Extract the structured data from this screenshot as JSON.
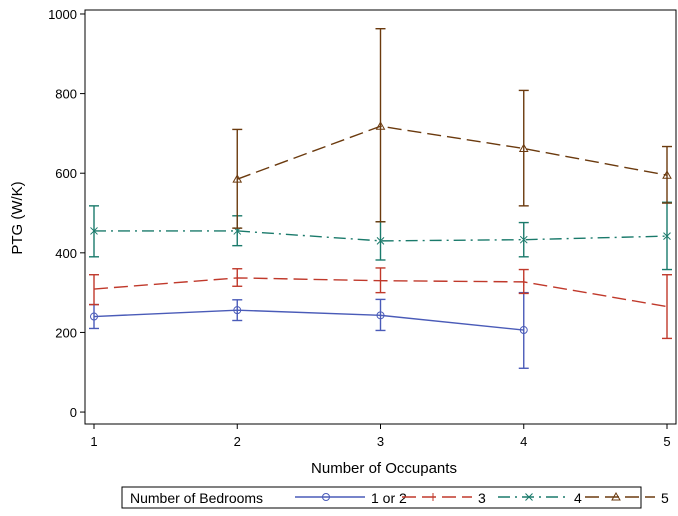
{
  "chart_data": {
    "type": "line",
    "xlabel": "Number of Occupants",
    "ylabel": "PTG (W/K)",
    "x_ticks": [
      "1",
      "2",
      "3",
      "4",
      "5"
    ],
    "y_ticks": [
      "0",
      "200",
      "400",
      "600",
      "800",
      "1000"
    ],
    "xlim": [
      1,
      5
    ],
    "ylim": [
      -30,
      1010
    ],
    "grid": false,
    "legend": {
      "title": "Number of Bedrooms",
      "placement": "bottom"
    },
    "series": [
      {
        "name": "1 or 2",
        "color": "#4a5bb8",
        "dash": "solid",
        "marker": "circle",
        "x": [
          1,
          2,
          3,
          4
        ],
        "y": [
          240,
          256,
          243,
          206
        ],
        "err_low": [
          210,
          230,
          205,
          110
        ],
        "err_high": [
          270,
          282,
          283,
          300
        ]
      },
      {
        "name": "3",
        "color": "#c0392b",
        "dash": "long-dash",
        "marker": "vertical-bar",
        "x": [
          1,
          2,
          3,
          4,
          5
        ],
        "y": [
          309,
          337,
          330,
          327,
          265
        ],
        "err_low": [
          270,
          316,
          300,
          298,
          185
        ],
        "err_high": [
          345,
          360,
          362,
          358,
          345
        ]
      },
      {
        "name": "4",
        "color": "#1a7a6b",
        "dash": "dash-dot",
        "marker": "x",
        "x": [
          1,
          2,
          3,
          4,
          5
        ],
        "y": [
          455,
          455,
          430,
          433,
          442
        ],
        "err_low": [
          390,
          418,
          382,
          390,
          358
        ],
        "err_high": [
          518,
          493,
          478,
          476,
          527
        ]
      },
      {
        "name": "5",
        "color": "#6b3a0e",
        "dash": "long-dash",
        "marker": "triangle",
        "x": [
          2,
          3,
          4,
          5
        ],
        "y": [
          585,
          718,
          662,
          595
        ],
        "err_low": [
          462,
          478,
          518,
          525
        ],
        "err_high": [
          710,
          963,
          808,
          667
        ]
      }
    ]
  }
}
